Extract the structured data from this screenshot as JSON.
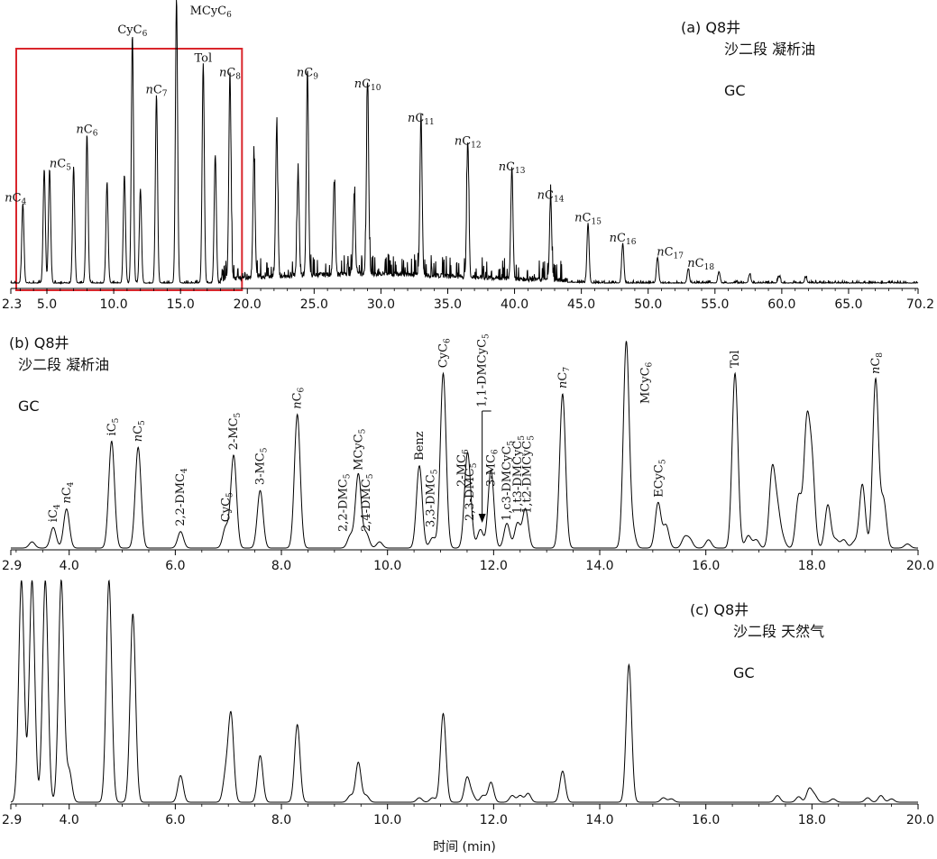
{
  "chart_data": [
    {
      "type": "line",
      "panel": "(a)",
      "info_lines": [
        "Q8井",
        "沙二段 凝析油",
        "GC"
      ],
      "xlim": [
        2.3,
        70.2
      ],
      "x_ticks": [
        "2.3",
        "5.0",
        "10.0",
        "15.0",
        "20.0",
        "25.0",
        "30.0",
        "35.0",
        "40.0",
        "45.0",
        "50.0",
        "55.0",
        "60.0",
        "65.0",
        "70.2"
      ],
      "highlight_box": {
        "x_range": [
          2.3,
          19.6
        ],
        "color": "#d9262c"
      },
      "peaks": [
        {
          "x": 3.2,
          "h": 0.28,
          "label": "nC4"
        },
        {
          "x": 4.8,
          "h": 0.4
        },
        {
          "x": 5.2,
          "h": 0.4,
          "label": "nC5"
        },
        {
          "x": 7.0,
          "h": 0.4
        },
        {
          "x": 8.0,
          "h": 0.52,
          "label": "nC6"
        },
        {
          "x": 9.5,
          "h": 0.35
        },
        {
          "x": 10.8,
          "h": 0.38
        },
        {
          "x": 11.4,
          "h": 0.87,
          "label": "CyC6"
        },
        {
          "x": 12.0,
          "h": 0.33
        },
        {
          "x": 13.2,
          "h": 0.66,
          "label": "nC7"
        },
        {
          "x": 14.7,
          "h": 1.0,
          "label": "MCyC6"
        },
        {
          "x": 16.7,
          "h": 0.77,
          "label": "Tol"
        },
        {
          "x": 17.6,
          "h": 0.45
        },
        {
          "x": 18.7,
          "h": 0.72,
          "label": "nC8"
        },
        {
          "x": 20.5,
          "h": 0.42
        },
        {
          "x": 22.2,
          "h": 0.52
        },
        {
          "x": 23.8,
          "h": 0.36
        },
        {
          "x": 24.5,
          "h": 0.72,
          "label": "nC9"
        },
        {
          "x": 26.5,
          "h": 0.32
        },
        {
          "x": 28.0,
          "h": 0.28
        },
        {
          "x": 29.0,
          "h": 0.68,
          "label": "nC10"
        },
        {
          "x": 33.0,
          "h": 0.56,
          "label": "nC11"
        },
        {
          "x": 36.5,
          "h": 0.48,
          "label": "nC12"
        },
        {
          "x": 39.8,
          "h": 0.39,
          "label": "nC13"
        },
        {
          "x": 42.7,
          "h": 0.29,
          "label": "nC14"
        },
        {
          "x": 45.5,
          "h": 0.21,
          "label": "nC15"
        },
        {
          "x": 48.1,
          "h": 0.14,
          "label": "nC16"
        },
        {
          "x": 50.7,
          "h": 0.09,
          "label": "nC17"
        },
        {
          "x": 53.0,
          "h": 0.05,
          "label": "nC18"
        },
        {
          "x": 55.3,
          "h": 0.04
        },
        {
          "x": 57.6,
          "h": 0.03
        },
        {
          "x": 59.8,
          "h": 0.025
        },
        {
          "x": 61.8,
          "h": 0.02
        }
      ]
    },
    {
      "type": "line",
      "panel": "(b)",
      "info_lines": [
        "Q8井",
        "沙二段 凝析油",
        "GC"
      ],
      "xlim": [
        2.9,
        20.0
      ],
      "x_ticks": [
        "2.9",
        "4.0",
        "6.0",
        "8.0",
        "10.0",
        "12.0",
        "14.0",
        "16.0",
        "18.0",
        "20.0"
      ],
      "peaks": [
        {
          "x": 3.3,
          "h": 0.03
        },
        {
          "x": 3.7,
          "h": 0.1,
          "label": "iC4"
        },
        {
          "x": 3.95,
          "h": 0.19,
          "label": "nC4"
        },
        {
          "x": 4.8,
          "h": 0.52,
          "label": "iC5"
        },
        {
          "x": 5.3,
          "h": 0.49,
          "label": "nC5"
        },
        {
          "x": 6.1,
          "h": 0.08,
          "label": "2,2-DMC4"
        },
        {
          "x": 6.95,
          "h": 0.1,
          "label": "CyC5"
        },
        {
          "x": 7.1,
          "h": 0.45,
          "label": "2-MC5"
        },
        {
          "x": 7.6,
          "h": 0.28,
          "label": "3-MC5"
        },
        {
          "x": 8.3,
          "h": 0.65,
          "label": "nC6"
        },
        {
          "x": 9.3,
          "h": 0.06,
          "label": "2,2-DMC5"
        },
        {
          "x": 9.45,
          "h": 0.36,
          "label": "MCyC5"
        },
        {
          "x": 9.6,
          "h": 0.07,
          "label": "2,4-DMC5"
        },
        {
          "x": 9.85,
          "h": 0.03
        },
        {
          "x": 10.6,
          "h": 0.4,
          "label": "Benz"
        },
        {
          "x": 10.85,
          "h": 0.05,
          "label": "3,3-DMC5"
        },
        {
          "x": 11.05,
          "h": 0.85,
          "label": "CyC6"
        },
        {
          "x": 11.5,
          "h": 0.38,
          "label": "2-MC6"
        },
        {
          "x": 11.55,
          "h": 0.12,
          "label": "2,3-DMC5"
        },
        {
          "x": 11.75,
          "h": 0.09,
          "label": "1,1-DMCyC5"
        },
        {
          "x": 11.95,
          "h": 0.38,
          "label": "3-MC6"
        },
        {
          "x": 12.25,
          "h": 0.12,
          "label": "1,c3-DMCyC5"
        },
        {
          "x": 12.45,
          "h": 0.12,
          "label": "1,t3-DMCyC5"
        },
        {
          "x": 12.6,
          "h": 0.19,
          "label": "1,t2-DMCyC5"
        },
        {
          "x": 13.3,
          "h": 0.75,
          "label": "nC7"
        },
        {
          "x": 14.5,
          "h": 1.0,
          "label": "MCyC6"
        },
        {
          "x": 14.62,
          "h": 0.08
        },
        {
          "x": 15.1,
          "h": 0.22,
          "label": "ECyC5"
        },
        {
          "x": 15.25,
          "h": 0.11
        },
        {
          "x": 15.6,
          "h": 0.05
        },
        {
          "x": 15.7,
          "h": 0.04
        },
        {
          "x": 16.05,
          "h": 0.04
        },
        {
          "x": 16.55,
          "h": 0.85,
          "label": "Tol"
        },
        {
          "x": 16.8,
          "h": 0.06
        },
        {
          "x": 16.95,
          "h": 0.04
        },
        {
          "x": 17.25,
          "h": 0.37
        },
        {
          "x": 17.35,
          "h": 0.17
        },
        {
          "x": 17.45,
          "h": 0.04
        },
        {
          "x": 17.75,
          "h": 0.25
        },
        {
          "x": 17.9,
          "h": 0.57
        },
        {
          "x": 18.0,
          "h": 0.39
        },
        {
          "x": 18.3,
          "h": 0.21
        },
        {
          "x": 18.45,
          "h": 0.04
        },
        {
          "x": 18.6,
          "h": 0.04
        },
        {
          "x": 18.8,
          "h": 0.03
        },
        {
          "x": 18.95,
          "h": 0.31
        },
        {
          "x": 19.2,
          "h": 0.82,
          "label": "nC8"
        },
        {
          "x": 19.35,
          "h": 0.23
        },
        {
          "x": 19.8,
          "h": 0.02
        }
      ]
    },
    {
      "type": "line",
      "panel": "(c)",
      "info_lines": [
        "Q8井",
        "沙二段 天然气",
        "GC"
      ],
      "xlim": [
        2.9,
        20.0
      ],
      "x_ticks": [
        "2.9",
        "4.0",
        "6.0",
        "8.0",
        "10.0",
        "12.0",
        "14.0",
        "16.0",
        "18.0",
        "20.0"
      ],
      "xlabel": "时间 (min)",
      "peaks": [
        {
          "x": 3.1,
          "h": 1.0
        },
        {
          "x": 3.3,
          "h": 1.0
        },
        {
          "x": 3.55,
          "h": 1.0
        },
        {
          "x": 3.85,
          "h": 1.0
        },
        {
          "x": 4.0,
          "h": 0.14
        },
        {
          "x": 4.75,
          "h": 1.0
        },
        {
          "x": 5.2,
          "h": 0.85
        },
        {
          "x": 6.1,
          "h": 0.12
        },
        {
          "x": 6.95,
          "h": 0.12
        },
        {
          "x": 7.05,
          "h": 0.39
        },
        {
          "x": 7.6,
          "h": 0.21
        },
        {
          "x": 8.3,
          "h": 0.35
        },
        {
          "x": 9.3,
          "h": 0.03
        },
        {
          "x": 9.45,
          "h": 0.18
        },
        {
          "x": 9.6,
          "h": 0.03
        },
        {
          "x": 10.6,
          "h": 0.02
        },
        {
          "x": 10.85,
          "h": 0.02
        },
        {
          "x": 11.05,
          "h": 0.4
        },
        {
          "x": 11.5,
          "h": 0.11
        },
        {
          "x": 11.6,
          "h": 0.03
        },
        {
          "x": 11.8,
          "h": 0.03
        },
        {
          "x": 11.95,
          "h": 0.09
        },
        {
          "x": 12.35,
          "h": 0.03
        },
        {
          "x": 12.5,
          "h": 0.03
        },
        {
          "x": 12.65,
          "h": 0.04
        },
        {
          "x": 13.3,
          "h": 0.14
        },
        {
          "x": 14.55,
          "h": 0.62
        },
        {
          "x": 15.2,
          "h": 0.02
        },
        {
          "x": 15.35,
          "h": 0.015
        },
        {
          "x": 17.35,
          "h": 0.03
        },
        {
          "x": 17.75,
          "h": 0.025
        },
        {
          "x": 17.95,
          "h": 0.06
        },
        {
          "x": 18.05,
          "h": 0.03
        },
        {
          "x": 18.4,
          "h": 0.015
        },
        {
          "x": 19.05,
          "h": 0.02
        },
        {
          "x": 19.3,
          "h": 0.03
        },
        {
          "x": 19.5,
          "h": 0.015
        }
      ]
    }
  ]
}
